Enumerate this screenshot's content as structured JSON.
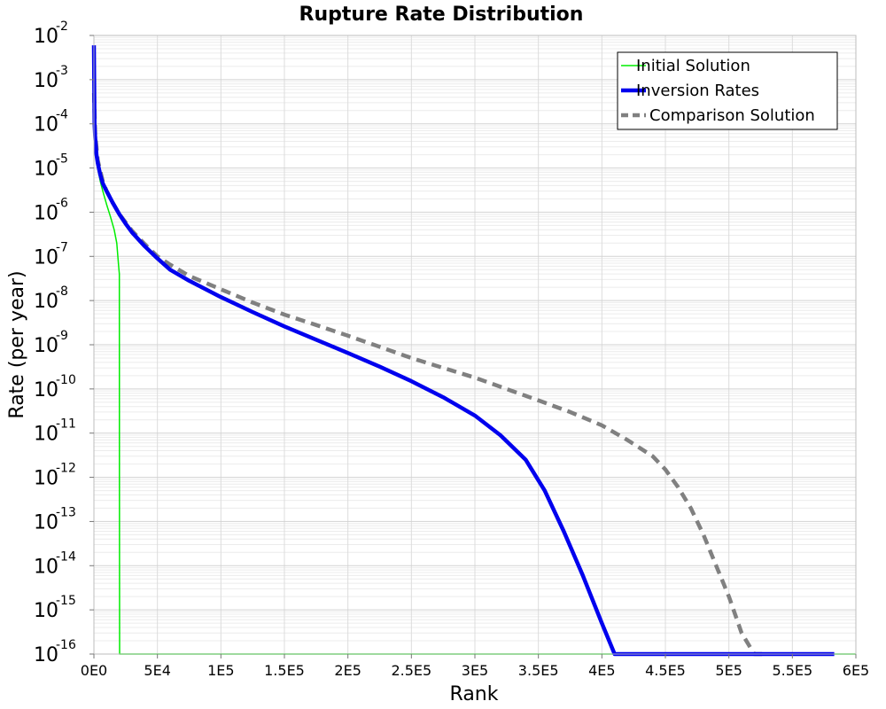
{
  "chart_data": {
    "type": "line",
    "title": "Rupture Rate Distribution",
    "xlabel": "Rank",
    "ylabel": "Rate (per year)",
    "xlim": [
      0,
      600000
    ],
    "ylim": [
      1e-16,
      0.01
    ],
    "yscale": "log",
    "grid": true,
    "legend_position": "top-right",
    "x_ticks": [
      {
        "value": 0,
        "label": "0E0"
      },
      {
        "value": 50000,
        "label": "5E4"
      },
      {
        "value": 100000,
        "label": "1E5"
      },
      {
        "value": 150000,
        "label": "1.5E5"
      },
      {
        "value": 200000,
        "label": "2E5"
      },
      {
        "value": 250000,
        "label": "2.5E5"
      },
      {
        "value": 300000,
        "label": "3E5"
      },
      {
        "value": 350000,
        "label": "3.5E5"
      },
      {
        "value": 400000,
        "label": "4E5"
      },
      {
        "value": 450000,
        "label": "4.5E5"
      },
      {
        "value": 500000,
        "label": "5E5"
      },
      {
        "value": 550000,
        "label": "5.5E5"
      },
      {
        "value": 600000,
        "label": "6E5"
      }
    ],
    "y_ticks": [
      {
        "value": 1e-16,
        "base": "10",
        "exp": "-16"
      },
      {
        "value": 1e-15,
        "base": "10",
        "exp": "-15"
      },
      {
        "value": 1e-14,
        "base": "10",
        "exp": "-14"
      },
      {
        "value": 1e-13,
        "base": "10",
        "exp": "-13"
      },
      {
        "value": 1e-12,
        "base": "10",
        "exp": "-12"
      },
      {
        "value": 1e-11,
        "base": "10",
        "exp": "-11"
      },
      {
        "value": 1e-10,
        "base": "10",
        "exp": "-10"
      },
      {
        "value": 1e-09,
        "base": "10",
        "exp": "-9"
      },
      {
        "value": 1e-08,
        "base": "10",
        "exp": "-8"
      },
      {
        "value": 1e-07,
        "base": "10",
        "exp": "-7"
      },
      {
        "value": 1e-06,
        "base": "10",
        "exp": "-6"
      },
      {
        "value": 1e-05,
        "base": "10",
        "exp": "-5"
      },
      {
        "value": 0.0001,
        "base": "10",
        "exp": "-4"
      },
      {
        "value": 0.001,
        "base": "10",
        "exp": "-3"
      },
      {
        "value": 0.01,
        "base": "10",
        "exp": "-2"
      }
    ],
    "series": [
      {
        "name": "Initial Solution",
        "color": "#00ee00",
        "style": "solid",
        "x": [
          100,
          500,
          1000,
          2000,
          3000,
          5000,
          7000,
          10000,
          13000,
          16000,
          18000,
          19500,
          20000,
          20100,
          20200,
          600000
        ],
        "y": [
          0.0005,
          0.0001,
          5e-05,
          2e-05,
          1e-05,
          5e-06,
          3e-06,
          1.5e-06,
          8e-07,
          4e-07,
          2e-07,
          6e-08,
          4e-08,
          1e-12,
          1e-16,
          1e-16
        ]
      },
      {
        "name": "Inversion Rates",
        "color": "#0000ee",
        "style": "solid",
        "x": [
          0,
          500,
          1000,
          2000,
          3000,
          5000,
          7000,
          10000,
          15000,
          20000,
          25000,
          30000,
          40000,
          50000,
          60000,
          75000,
          100000,
          125000,
          150000,
          175000,
          200000,
          225000,
          250000,
          275000,
          300000,
          320000,
          340000,
          355000,
          370000,
          385000,
          400000,
          410000,
          420000,
          425000,
          430000,
          440000,
          460000,
          500000,
          550000,
          583000
        ],
        "y": [
          0.006,
          0.0001,
          5e-05,
          2e-05,
          1.3e-05,
          7e-06,
          4.5e-06,
          3e-06,
          1.6e-06,
          9e-07,
          5.5e-07,
          3.5e-07,
          1.7e-07,
          9e-08,
          5e-08,
          2.8e-08,
          1.2e-08,
          5.5e-09,
          2.6e-09,
          1.3e-09,
          6.5e-10,
          3.2e-10,
          1.5e-10,
          6.5e-11,
          2.5e-11,
          9e-12,
          2.5e-12,
          5e-13,
          6e-14,
          6e-15,
          5e-16,
          1e-16,
          1e-16,
          1e-16,
          1e-16,
          1e-16,
          1e-16,
          1e-16,
          1e-16,
          1e-16
        ]
      },
      {
        "name": "Comparison Solution",
        "color": "#808080",
        "style": "dashed",
        "x": [
          100,
          1000,
          3000,
          7000,
          10000,
          15000,
          20000,
          30000,
          40000,
          50000,
          60000,
          75000,
          100000,
          125000,
          150000,
          175000,
          200000,
          225000,
          250000,
          275000,
          300000,
          325000,
          350000,
          375000,
          400000,
          420000,
          440000,
          450000,
          460000,
          470000,
          480000,
          490000,
          500000,
          510000,
          520000,
          525000,
          530000
        ],
        "y": [
          0.0005,
          6e-05,
          1.5e-05,
          5e-06,
          3e-06,
          1.6e-06,
          9e-07,
          3.8e-07,
          1.9e-07,
          1e-07,
          6.5e-08,
          3.6e-08,
          1.8e-08,
          9e-09,
          4.8e-09,
          2.8e-09,
          1.6e-09,
          9e-10,
          5e-10,
          3e-10,
          1.8e-10,
          1e-10,
          5.5e-11,
          3e-11,
          1.5e-11,
          7e-12,
          3e-12,
          1.5e-12,
          6e-13,
          2e-13,
          5e-14,
          1e-14,
          2e-15,
          3e-16,
          1e-16,
          1e-16,
          1e-16
        ]
      }
    ]
  }
}
